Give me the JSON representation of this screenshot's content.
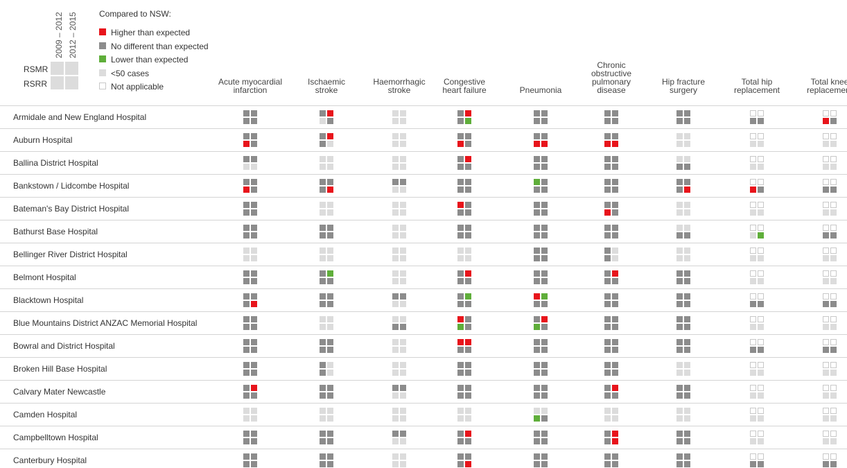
{
  "key": {
    "periods": [
      "2009 – 2012",
      "2012 – 2015"
    ],
    "measures": [
      "RSMR",
      "RSRR"
    ]
  },
  "legend": {
    "title": "Compared to NSW:",
    "items": [
      {
        "label": "Higher than expected",
        "color": "#e8141b"
      },
      {
        "label": "No different than expected",
        "color": "#8c8c8c"
      },
      {
        "label": "Lower than expected",
        "color": "#5fae3a"
      },
      {
        "label": "<50 cases",
        "color": "#dcdcdc"
      },
      {
        "label": "Not applicable",
        "color": "#ffffff"
      }
    ]
  },
  "table": {
    "columns": [
      "Acute myocardial\ninfarction",
      "Ischaemic\nstroke",
      "Haemorrhagic\nstroke",
      "Congestive\nheart failure",
      "Pneumonia",
      "Chronic\nobstructive\npulmonary\ndisease",
      "Hip fracture\nsurgery",
      "Total hip\nreplacement",
      "Total knee\nreplacement"
    ],
    "rows": [
      {
        "name": "Armidale and New England Hospital",
        "cells": [
          [
            1,
            1,
            1,
            1
          ],
          [
            1,
            0,
            3,
            1
          ],
          [
            3,
            3,
            3,
            3
          ],
          [
            1,
            0,
            1,
            2
          ],
          [
            1,
            1,
            1,
            1
          ],
          [
            1,
            1,
            1,
            1
          ],
          [
            1,
            1,
            1,
            1
          ],
          [
            4,
            4,
            1,
            1
          ],
          [
            4,
            4,
            0,
            1
          ]
        ]
      },
      {
        "name": "Auburn Hospital",
        "cells": [
          [
            1,
            1,
            0,
            1
          ],
          [
            1,
            0,
            1,
            3
          ],
          [
            3,
            3,
            3,
            3
          ],
          [
            1,
            1,
            0,
            1
          ],
          [
            1,
            1,
            0,
            0
          ],
          [
            1,
            1,
            0,
            0
          ],
          [
            3,
            3,
            3,
            3
          ],
          [
            4,
            4,
            3,
            3
          ],
          [
            4,
            4,
            3,
            3
          ]
        ]
      },
      {
        "name": "Ballina District Hospital",
        "cells": [
          [
            1,
            1,
            3,
            3
          ],
          [
            3,
            3,
            3,
            3
          ],
          [
            3,
            3,
            3,
            3
          ],
          [
            1,
            0,
            1,
            1
          ],
          [
            1,
            1,
            1,
            1
          ],
          [
            1,
            1,
            1,
            1
          ],
          [
            3,
            3,
            1,
            1
          ],
          [
            4,
            4,
            3,
            3
          ],
          [
            4,
            4,
            3,
            3
          ]
        ]
      },
      {
        "name": "Bankstown / Lidcombe Hospital",
        "cells": [
          [
            1,
            1,
            0,
            1
          ],
          [
            1,
            1,
            1,
            0
          ],
          [
            1,
            1,
            3,
            3
          ],
          [
            1,
            1,
            1,
            1
          ],
          [
            2,
            1,
            1,
            1
          ],
          [
            1,
            1,
            1,
            1
          ],
          [
            1,
            1,
            1,
            0
          ],
          [
            4,
            4,
            0,
            1
          ],
          [
            4,
            4,
            1,
            1
          ]
        ]
      },
      {
        "name": "Bateman's Bay District Hospital",
        "cells": [
          [
            1,
            1,
            1,
            1
          ],
          [
            3,
            3,
            3,
            3
          ],
          [
            3,
            3,
            3,
            3
          ],
          [
            0,
            1,
            1,
            1
          ],
          [
            1,
            1,
            1,
            1
          ],
          [
            1,
            1,
            0,
            1
          ],
          [
            3,
            3,
            3,
            3
          ],
          [
            4,
            4,
            3,
            3
          ],
          [
            4,
            4,
            3,
            3
          ]
        ]
      },
      {
        "name": "Bathurst Base Hospital",
        "cells": [
          [
            1,
            1,
            1,
            1
          ],
          [
            1,
            1,
            1,
            1
          ],
          [
            3,
            3,
            3,
            3
          ],
          [
            1,
            1,
            1,
            1
          ],
          [
            1,
            1,
            1,
            1
          ],
          [
            1,
            1,
            1,
            1
          ],
          [
            3,
            3,
            1,
            1
          ],
          [
            4,
            4,
            3,
            2
          ],
          [
            4,
            4,
            1,
            1
          ]
        ]
      },
      {
        "name": "Bellinger River District Hospital",
        "cells": [
          [
            3,
            3,
            3,
            3
          ],
          [
            3,
            3,
            3,
            3
          ],
          [
            3,
            3,
            3,
            3
          ],
          [
            3,
            3,
            3,
            3
          ],
          [
            1,
            1,
            1,
            1
          ],
          [
            1,
            3,
            1,
            3
          ],
          [
            3,
            3,
            3,
            3
          ],
          [
            4,
            4,
            3,
            3
          ],
          [
            4,
            4,
            3,
            3
          ]
        ]
      },
      {
        "name": "Belmont Hospital",
        "cells": [
          [
            1,
            1,
            1,
            1
          ],
          [
            1,
            2,
            1,
            1
          ],
          [
            3,
            3,
            3,
            3
          ],
          [
            1,
            0,
            1,
            1
          ],
          [
            1,
            1,
            1,
            1
          ],
          [
            1,
            0,
            1,
            1
          ],
          [
            1,
            1,
            1,
            1
          ],
          [
            4,
            4,
            3,
            3
          ],
          [
            4,
            4,
            3,
            3
          ]
        ]
      },
      {
        "name": "Blacktown Hospital",
        "cells": [
          [
            1,
            1,
            1,
            0
          ],
          [
            1,
            1,
            1,
            1
          ],
          [
            1,
            1,
            3,
            3
          ],
          [
            1,
            2,
            1,
            1
          ],
          [
            0,
            2,
            1,
            1
          ],
          [
            1,
            1,
            1,
            1
          ],
          [
            1,
            1,
            1,
            1
          ],
          [
            4,
            4,
            1,
            1
          ],
          [
            4,
            4,
            1,
            1
          ]
        ]
      },
      {
        "name": "Blue Mountains District ANZAC Memorial Hospital",
        "cells": [
          [
            1,
            1,
            1,
            1
          ],
          [
            3,
            3,
            3,
            3
          ],
          [
            3,
            3,
            1,
            1
          ],
          [
            0,
            1,
            2,
            1
          ],
          [
            1,
            0,
            2,
            1
          ],
          [
            1,
            1,
            1,
            1
          ],
          [
            1,
            1,
            1,
            1
          ],
          [
            4,
            4,
            3,
            3
          ],
          [
            4,
            4,
            3,
            3
          ]
        ]
      },
      {
        "name": "Bowral and District Hospital",
        "cells": [
          [
            1,
            1,
            1,
            1
          ],
          [
            1,
            1,
            1,
            1
          ],
          [
            3,
            3,
            3,
            3
          ],
          [
            0,
            0,
            1,
            1
          ],
          [
            1,
            1,
            1,
            1
          ],
          [
            1,
            1,
            1,
            1
          ],
          [
            1,
            1,
            1,
            1
          ],
          [
            4,
            4,
            1,
            1
          ],
          [
            4,
            4,
            1,
            1
          ]
        ]
      },
      {
        "name": "Broken Hill Base Hospital",
        "cells": [
          [
            1,
            1,
            1,
            1
          ],
          [
            1,
            3,
            1,
            3
          ],
          [
            3,
            3,
            3,
            3
          ],
          [
            1,
            1,
            1,
            1
          ],
          [
            1,
            1,
            1,
            1
          ],
          [
            1,
            1,
            1,
            1
          ],
          [
            3,
            3,
            3,
            3
          ],
          [
            4,
            4,
            3,
            3
          ],
          [
            4,
            4,
            3,
            3
          ]
        ]
      },
      {
        "name": "Calvary Mater Newcastle",
        "cells": [
          [
            1,
            0,
            1,
            1
          ],
          [
            1,
            1,
            1,
            1
          ],
          [
            1,
            1,
            3,
            3
          ],
          [
            1,
            1,
            1,
            1
          ],
          [
            1,
            1,
            1,
            1
          ],
          [
            1,
            0,
            1,
            1
          ],
          [
            1,
            1,
            1,
            1
          ],
          [
            4,
            4,
            3,
            3
          ],
          [
            4,
            4,
            3,
            3
          ]
        ]
      },
      {
        "name": "Camden Hospital",
        "cells": [
          [
            3,
            3,
            3,
            3
          ],
          [
            3,
            3,
            3,
            3
          ],
          [
            3,
            3,
            3,
            3
          ],
          [
            3,
            3,
            3,
            3
          ],
          [
            3,
            3,
            2,
            1
          ],
          [
            3,
            3,
            3,
            3
          ],
          [
            3,
            3,
            3,
            3
          ],
          [
            4,
            4,
            3,
            3
          ],
          [
            4,
            4,
            3,
            3
          ]
        ]
      },
      {
        "name": "Campbelltown Hospital",
        "cells": [
          [
            1,
            1,
            1,
            1
          ],
          [
            1,
            1,
            1,
            1
          ],
          [
            1,
            1,
            3,
            3
          ],
          [
            1,
            0,
            1,
            1
          ],
          [
            1,
            1,
            1,
            1
          ],
          [
            1,
            0,
            1,
            0
          ],
          [
            1,
            1,
            1,
            1
          ],
          [
            4,
            4,
            3,
            3
          ],
          [
            4,
            4,
            3,
            3
          ]
        ]
      },
      {
        "name": "Canterbury Hospital",
        "cells": [
          [
            1,
            1,
            1,
            1
          ],
          [
            1,
            1,
            1,
            1
          ],
          [
            3,
            3,
            3,
            3
          ],
          [
            1,
            1,
            1,
            0
          ],
          [
            1,
            1,
            1,
            1
          ],
          [
            1,
            1,
            1,
            1
          ],
          [
            1,
            1,
            1,
            1
          ],
          [
            4,
            4,
            1,
            1
          ],
          [
            4,
            4,
            1,
            1
          ]
        ]
      }
    ]
  }
}
